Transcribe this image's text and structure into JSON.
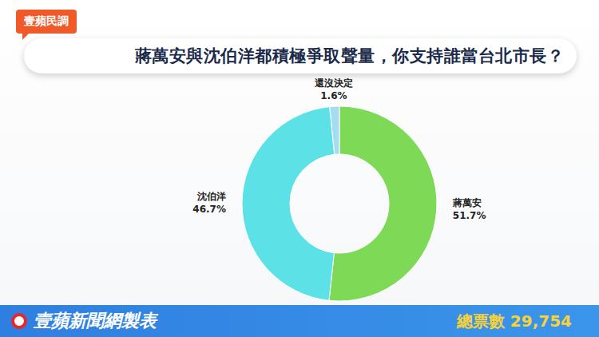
{
  "chart_data": {
    "type": "donut",
    "badge": "壹蘋民調",
    "title": "蔣萬安與沈伯洋都積極爭取聲量，你支持誰當台北市長？",
    "categories": [
      "蔣萬安",
      "沈伯洋",
      "還沒決定"
    ],
    "values": [
      51.7,
      46.7,
      1.6
    ],
    "value_labels": [
      "51.7%",
      "46.7%",
      "1.6%"
    ],
    "colors": [
      "#7ed957",
      "#5ce1e6",
      "#a6dcf2"
    ],
    "data_labels": true,
    "footer": {
      "source": "壹蘋新聞網製表",
      "total": "總票數 29,754"
    }
  }
}
